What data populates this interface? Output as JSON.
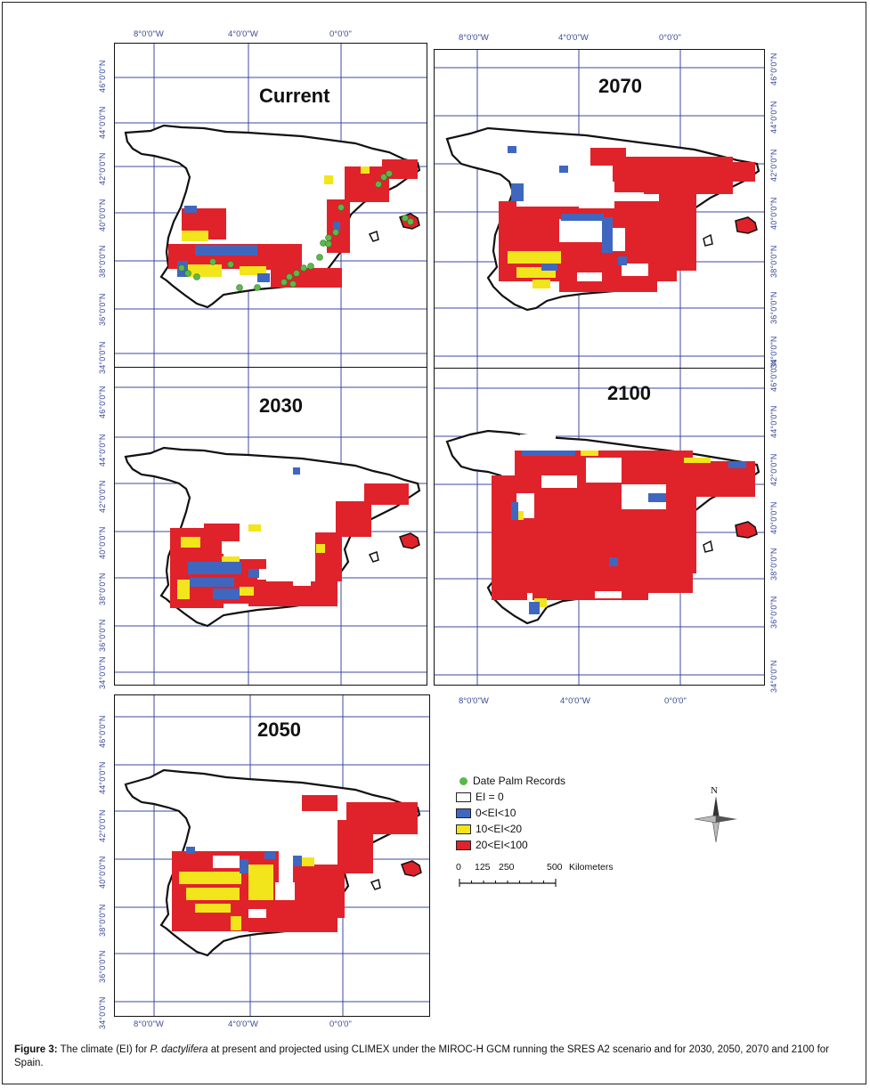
{
  "panels": [
    {
      "id": "current",
      "title": "Current"
    },
    {
      "id": "2030",
      "title": "2030"
    },
    {
      "id": "2050",
      "title": "2050"
    },
    {
      "id": "2070",
      "title": "2070"
    },
    {
      "id": "2100",
      "title": "2100"
    }
  ],
  "axes": {
    "lat_labels": [
      "46°0'0\"N",
      "44°0'0\"N",
      "42°0'0\"N",
      "40°0'0\"N",
      "38°0'0\"N",
      "36°0'0\"N",
      "34°0'0\"N"
    ],
    "lon_labels": [
      "8°0'0\"W",
      "4°0'0\"W",
      "0°0'0\""
    ]
  },
  "legend": {
    "records": "Date Palm Records",
    "items": [
      {
        "label": "EI = 0",
        "color": "#ffffff"
      },
      {
        "label": "0<EI<10",
        "color": "#3f67bf"
      },
      {
        "label": "10<EI<20",
        "color": "#f2e51b"
      },
      {
        "label": "20<EI<100",
        "color": "#e0222b"
      }
    ],
    "record_color": "#5cb84a"
  },
  "scale": {
    "ticks": [
      "0",
      "125",
      "250",
      "500"
    ],
    "unit": "Kilometers"
  },
  "north_label": "N",
  "caption": {
    "label": "Figure 3:",
    "text_1": "The climate (EI) for",
    "species": "P. dactylifera",
    "text_2": "at present and projected using CLIMEX under the MIROC-H GCM running the SRES A2 scenario and for 2030, 2050, 2070 and 2100 for Spain."
  },
  "colors": {
    "grid": "#3c4aa0",
    "red": "#e0222b",
    "yellow": "#f2e51b",
    "blue": "#3f67bf",
    "green": "#5cb84a"
  }
}
